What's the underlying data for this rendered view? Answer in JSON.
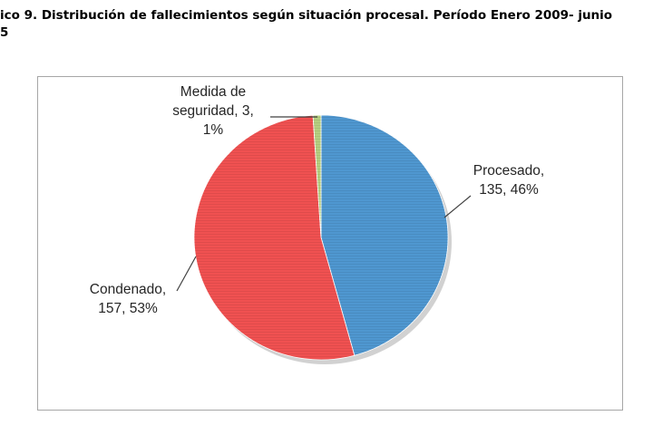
{
  "chart_data": {
    "type": "pie",
    "title": "ico 9. Distribución de fallecimientos según situación procesal. Período Enero 2009- junio",
    "title_line2": "5",
    "categories": [
      "Procesado",
      "Condenado",
      "Medida de seguridad"
    ],
    "values": [
      135,
      157,
      3
    ],
    "percents": [
      "46%",
      "53%",
      "1%"
    ],
    "colors": [
      "#4f97d0",
      "#f05151",
      "#b6cf80"
    ],
    "labels": [
      {
        "lines": [
          "Procesado,",
          "135, 46%"
        ]
      },
      {
        "lines": [
          "Condenado,",
          "157, 53%"
        ]
      },
      {
        "lines": [
          "Medida de",
          "seguridad, 3,",
          "1%"
        ]
      }
    ],
    "legend": "none",
    "grid": false
  }
}
